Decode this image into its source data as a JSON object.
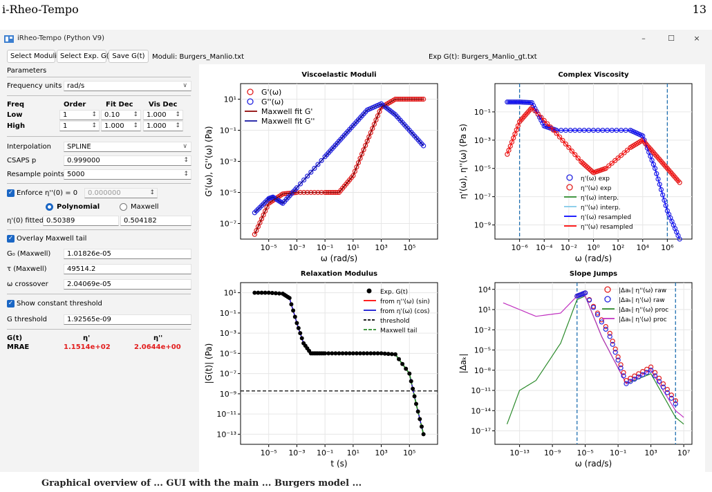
{
  "page": {
    "header_left": "i-Rheo-Tempo",
    "page_number": "13",
    "caption_visible": "Graphical overview of ... GUI with the main ... Burgers model ..."
  },
  "window": {
    "title": "iRheo-Tempo (Python V9)",
    "controls": {
      "minimize": "–",
      "maximize": "☐",
      "close": "×"
    }
  },
  "toolbar": {
    "select_moduli": "Select Moduli",
    "select_exp": "Select Exp. G(t)",
    "save": "Save G(t)",
    "moduli_file": "Moduli: Burgers_Manlio.txt",
    "exp_file": "Exp G(t): Burgers_Manlio_gt.txt"
  },
  "params": {
    "header": "Parameters",
    "freq_units_label": "Frequency units",
    "freq_units_value": "rad/s",
    "col_freq": "Freq",
    "col_order": "Order",
    "col_fitdec": "Fit Dec",
    "col_visdec": "Vis Dec",
    "low_label": "Low",
    "low_order": "1",
    "low_fitdec": "0.10",
    "low_visdec": "1.000",
    "high_label": "High",
    "high_order": "1",
    "high_fitdec": "1.000",
    "high_visdec": "1.000",
    "interp_label": "Interpolation",
    "interp_value": "SPLINE",
    "csaps_label": "CSAPS p",
    "csaps_value": "0.999000",
    "resample_label": "Resample points",
    "resample_value": "5000",
    "enforce_label": "Enforce η''(0) = 0",
    "enforce_value": "0.000000",
    "poly_label": "Polynomial",
    "maxwell_label": "Maxwell",
    "eta_fitted_label": "η'(0) fitted",
    "eta_fitted_value1": "0.50389",
    "eta_fitted_value2": "0.504182",
    "overlay_label": "Overlay Maxwell tail",
    "g0_label": "G₀ (Maxwell)",
    "g0_value": "1.01826e-05",
    "tau_label": "τ (Maxwell)",
    "tau_value": "49514.2",
    "wcross_label": "ω crossover",
    "wcross_value": "2.04069e-05",
    "threshold_check_label": "Show constant threshold",
    "gthr_label": "G threshold",
    "gthr_value": "1.92565e-09",
    "res_col1": "G(t)",
    "res_col2": "η'",
    "res_col3": "η''",
    "res_row": "MRAE",
    "res_val2": "1.1514e+02",
    "res_val3": "2.0644e+00"
  },
  "colors": {
    "accent": "#1a66c4",
    "red": "#e21d1d",
    "blue": "#2323e0",
    "green": "#2a8a2a",
    "magenta": "#c030c0"
  },
  "chart_data": [
    {
      "type": "scatter",
      "title": "Viscoelastic Moduli",
      "xlabel": "ω (rad/s)",
      "ylabel": "G'(ω), G''(ω) (Pa)",
      "xscale": "log",
      "yscale": "log",
      "xlim": [
        1e-07,
        10000000.0
      ],
      "ylim": [
        1e-08,
        100.0
      ],
      "xticks": [
        "10⁻⁵",
        "10⁻³",
        "10⁻¹",
        "10¹",
        "10³",
        "10⁵"
      ],
      "yticks": [
        "10⁻⁷",
        "10⁻⁵",
        "10⁻³",
        "10⁻¹",
        "10¹"
      ],
      "legend": [
        "G'(ω)",
        "G''(ω)",
        "Maxwell fit G'",
        "Maxwell fit G''"
      ],
      "legend_loc": "upper-left",
      "series": [
        {
          "name": "G'(ω)",
          "x": [
            1e-06,
            1e-05,
            0.0001,
            0.001,
            0.1,
            1,
            10,
            100,
            1000.0,
            10000.0,
            100000.0,
            1000000.0
          ],
          "y": [
            2e-08,
            2e-06,
            8e-06,
            1e-05,
            1e-05,
            1e-05,
            0.00012,
            0.02,
            3,
            10,
            10,
            10
          ]
        },
        {
          "name": "G''(ω)",
          "x": [
            1e-06,
            1e-05,
            2e-05,
            0.0001,
            0.001,
            0.1,
            1,
            10,
            100,
            1000.0,
            10000.0,
            100000.0,
            1000000.0
          ],
          "y": [
            5e-07,
            4e-06,
            5e-06,
            2e-06,
            2e-05,
            0.002,
            0.02,
            0.2,
            2,
            5,
            1,
            0.1,
            0.01
          ]
        }
      ]
    },
    {
      "type": "scatter",
      "title": "Complex Viscosity",
      "xlabel": "ω (rad/s)",
      "ylabel": "η'(ω), η''(ω) (Pa s)",
      "xscale": "log",
      "yscale": "log",
      "xlim": [
        1e-08,
        100000000.0
      ],
      "ylim": [
        1e-10,
        10.0
      ],
      "xticks": [
        "10⁻⁶",
        "10⁻⁴",
        "10⁻²",
        "10⁰",
        "10²",
        "10⁴",
        "10⁶"
      ],
      "yticks": [
        "10⁻⁹",
        "10⁻⁷",
        "10⁻⁵",
        "10⁻³",
        "10⁻¹"
      ],
      "legend": [
        "η'(ω) exp",
        "η''(ω) exp",
        "η'(ω) interp.",
        "η''(ω) interp.",
        "η'(ω) resampled",
        "η''(ω) resampled"
      ],
      "vlines": [
        1e-06,
        1000000.0
      ],
      "series": [
        {
          "name": "η'(ω) exp",
          "x": [
            1e-07,
            1e-06,
            1e-05,
            0.0001,
            0.001,
            1,
            1000.0,
            10000.0,
            100000.0,
            1000000.0,
            10000000.0
          ],
          "y": [
            0.5,
            0.5,
            0.45,
            0.01,
            0.005,
            0.005,
            0.005,
            0.002,
            1e-05,
            1e-08,
            1e-10
          ]
        },
        {
          "name": "η''(ω) exp",
          "x": [
            1e-07,
            1e-06,
            1e-05,
            0.001,
            0.1,
            1,
            10,
            1000.0,
            10000.0,
            100000.0,
            1000000.0,
            10000000.0
          ],
          "y": [
            0.0001,
            0.02,
            0.2,
            0.003,
            3e-05,
            5e-06,
            1e-05,
            0.0003,
            0.001,
            0.0001,
            1e-05,
            1e-06
          ]
        }
      ]
    },
    {
      "type": "line",
      "title": "Relaxation Modulus",
      "xlabel": "t (s)",
      "ylabel": "|G(t)| (Pa)",
      "xscale": "log",
      "yscale": "log",
      "xlim": [
        1e-07,
        10000000.0
      ],
      "ylim": [
        1e-14,
        100.0
      ],
      "xticks": [
        "10⁻⁵",
        "10⁻³",
        "10⁻¹",
        "10¹",
        "10³",
        "10⁵"
      ],
      "yticks": [
        "10⁻¹³",
        "10⁻¹¹",
        "10⁻⁹",
        "10⁻⁷",
        "10⁻⁵",
        "10⁻³",
        "10⁻¹",
        "10¹"
      ],
      "legend": [
        "Exp. G(t)",
        "from η''(ω) (sin)",
        "from η'(ω) (cos)",
        "threshold",
        "Maxwell tail"
      ],
      "threshold": 1.92565e-09,
      "series": [
        {
          "name": "Exp. G(t)",
          "x": [
            1e-06,
            1e-05,
            0.0001,
            0.0003,
            0.001,
            0.003,
            0.01,
            0.03,
            0.1,
            1,
            10,
            100,
            1000.0,
            10000.0,
            100000.0,
            300000.0,
            1000000.0
          ],
          "y": [
            10,
            10,
            8,
            3,
            0.01,
            0.0001,
            1e-05,
            1e-05,
            1e-05,
            1e-05,
            1e-05,
            1e-05,
            1e-05,
            8e-06,
            1e-07,
            1e-10,
            1e-13
          ]
        }
      ]
    },
    {
      "type": "scatter",
      "title": "Slope Jumps",
      "xlabel": "ω (rad/s)",
      "ylabel": "|Δaₖ|",
      "xscale": "log",
      "yscale": "log",
      "xlim": [
        1e-16,
        100000000.0
      ],
      "ylim": [
        1e-19,
        100000.0
      ],
      "xticks": [
        "10⁻¹³",
        "10⁻⁹",
        "10⁻⁵",
        "10⁻¹",
        "10³",
        "10⁷"
      ],
      "yticks": [
        "10⁻¹⁷",
        "10⁻¹⁴",
        "10⁻¹¹",
        "10⁻⁸",
        "10⁻⁵",
        "10⁻²",
        "10¹",
        "10⁴"
      ],
      "legend": [
        "|Δaₖ| η''(ω) raw",
        "|Δaₖ| η'(ω) raw",
        "|Δaₖ| η''(ω) proc",
        "|Δaₖ| η'(ω) proc"
      ],
      "vlines": [
        1e-06,
        1000000.0
      ]
    }
  ]
}
